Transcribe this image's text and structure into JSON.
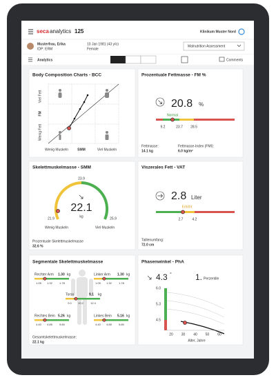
{
  "header": {
    "brand": "seca",
    "product": "analytics",
    "version": "125",
    "clinic": "Klinikum Muster Nord"
  },
  "patient": {
    "name": "Musterfrau, Erika",
    "id": "IDP: ERM",
    "birth": "10 Jan 1981 (43 y/o)",
    "sex": "Female",
    "assessment": "Malnutrition Assessment"
  },
  "toolbar": {
    "section": "Analytics",
    "comments": "Comments"
  },
  "bcc": {
    "title": "Body Composition Charts - BCC",
    "y_high": "Viel Fett",
    "y_axis": "FM",
    "y_low": "Wenig Fett",
    "x_low": "Wenig Muskeln",
    "x_axis": "SMM",
    "x_high": "Viel Muskeln"
  },
  "fm": {
    "title": "Prozentuale Fettmasse - FM %",
    "value": "20.8",
    "unit": "%",
    "status": "Normal",
    "ticks": [
      "9.2",
      "23.7",
      "28.5"
    ],
    "mass_label": "Fettmasse:",
    "mass": "14.1 kg",
    "fmi_label": "Fettmasse-Index (FMI):",
    "fmi": "6.0 kg/m²"
  },
  "smm": {
    "title": "Skelettmuskelmasse - SMM",
    "top": "23.9",
    "low": "21.9",
    "high": "25.9",
    "value": "22.1",
    "unit": "kg",
    "low_label": "Wenig Muskeln",
    "high_label": "Viel Muskeln",
    "pct_label": "Prozentuale Skelettmuskelmasse",
    "pct": "32.6 %"
  },
  "vat": {
    "title": "Viszerales Fett - VAT",
    "value": "2.8",
    "unit": "Liter",
    "status": "Erhöht",
    "ticks": [
      "2.7",
      "4.2"
    ],
    "waist_label": "Taillenumfang:",
    "waist": "72.0 cm"
  },
  "seg": {
    "title": "Segmentale Skelettmuskelmasse",
    "parts": [
      {
        "name": "Rechter Arm",
        "value": "1.30",
        "unit": "kg",
        "ticks": [
          "1.05",
          "1.32",
          "1.78"
        ]
      },
      {
        "name": "Linker Arm",
        "value": "1.30",
        "unit": "kg",
        "ticks": [
          "1.05",
          "1.32",
          "1.78"
        ]
      },
      {
        "name": "Torso",
        "value": "9.1",
        "unit": "kg",
        "ticks": [
          "9.0",
          "10.2",
          "12.4"
        ]
      },
      {
        "name": "Rechtes Bein",
        "value": "5.26",
        "unit": "kg",
        "ticks": [
          "4.40",
          "4.85",
          "5.80"
        ]
      },
      {
        "name": "Linkes Bein",
        "value": "5.16",
        "unit": "kg",
        "ticks": [
          "4.40",
          "4.85",
          "5.80"
        ]
      }
    ],
    "total_label": "Gesamtskelettmuskelmasse:",
    "total": "22.1 kg"
  },
  "pha": {
    "title": "Phasenwinkel - PhA",
    "value": "4.3",
    "unit": "°",
    "percentile": "1.",
    "percentile_label": "Perzentile",
    "yticks": [
      "6.0",
      "5.3",
      "4.5"
    ],
    "xticks": [
      "20",
      "30",
      "40",
      "50",
      "60"
    ],
    "xlabel": "Alter, Jahre"
  }
}
